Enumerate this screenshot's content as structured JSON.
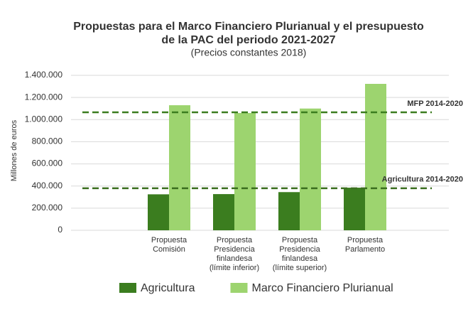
{
  "chart_data": {
    "type": "bar",
    "title": [
      "Propuestas para el Marco Financiero Plurianual y el presupuesto",
      "de la PAC del periodo 2021-2027"
    ],
    "subtitle": "(Precios constantes 2018)",
    "y_label": "Millones de euros",
    "categories": [
      null,
      "Propuesta\nComisión",
      "Propuesta\nPresidencia\nfinlandesa\n(límite inferior)",
      "Propuesta\nPresidencia\nfinlandesa\n(límite superior)",
      "Propuesta\nParlamento"
    ],
    "series": [
      {
        "name": "Agricultura",
        "color": "#3b7d1f",
        "values": [
          null,
          325000,
          327000,
          345000,
          385000
        ]
      },
      {
        "name": "Marco Financiero Plurianual",
        "color": "#9dd46f",
        "values": [
          null,
          1130000,
          1060000,
          1100000,
          1323000
        ]
      }
    ],
    "reference_lines": [
      {
        "label": "MFP 2014-2020",
        "value": 1066000,
        "color": "#3b7d1f",
        "label_color": "#3b6e1f"
      },
      {
        "label": "Agricultura 2014-2020",
        "value": 380000,
        "color": "#3b6e1f",
        "label_color": "#6aaa3a"
      }
    ],
    "ylim": [
      0,
      1400000
    ],
    "yticks": [
      {
        "value": 0,
        "label": "0"
      },
      {
        "value": 200000,
        "label": "200.000"
      },
      {
        "value": 400000,
        "label": "400.000"
      },
      {
        "value": 600000,
        "label": "600.000"
      },
      {
        "value": 800000,
        "label": "800.000"
      },
      {
        "value": 1000000,
        "label": "1.000.000"
      },
      {
        "value": 1200000,
        "label": "1.200.000"
      },
      {
        "value": 1400000,
        "label": "1.400.000"
      }
    ],
    "grid": true
  }
}
